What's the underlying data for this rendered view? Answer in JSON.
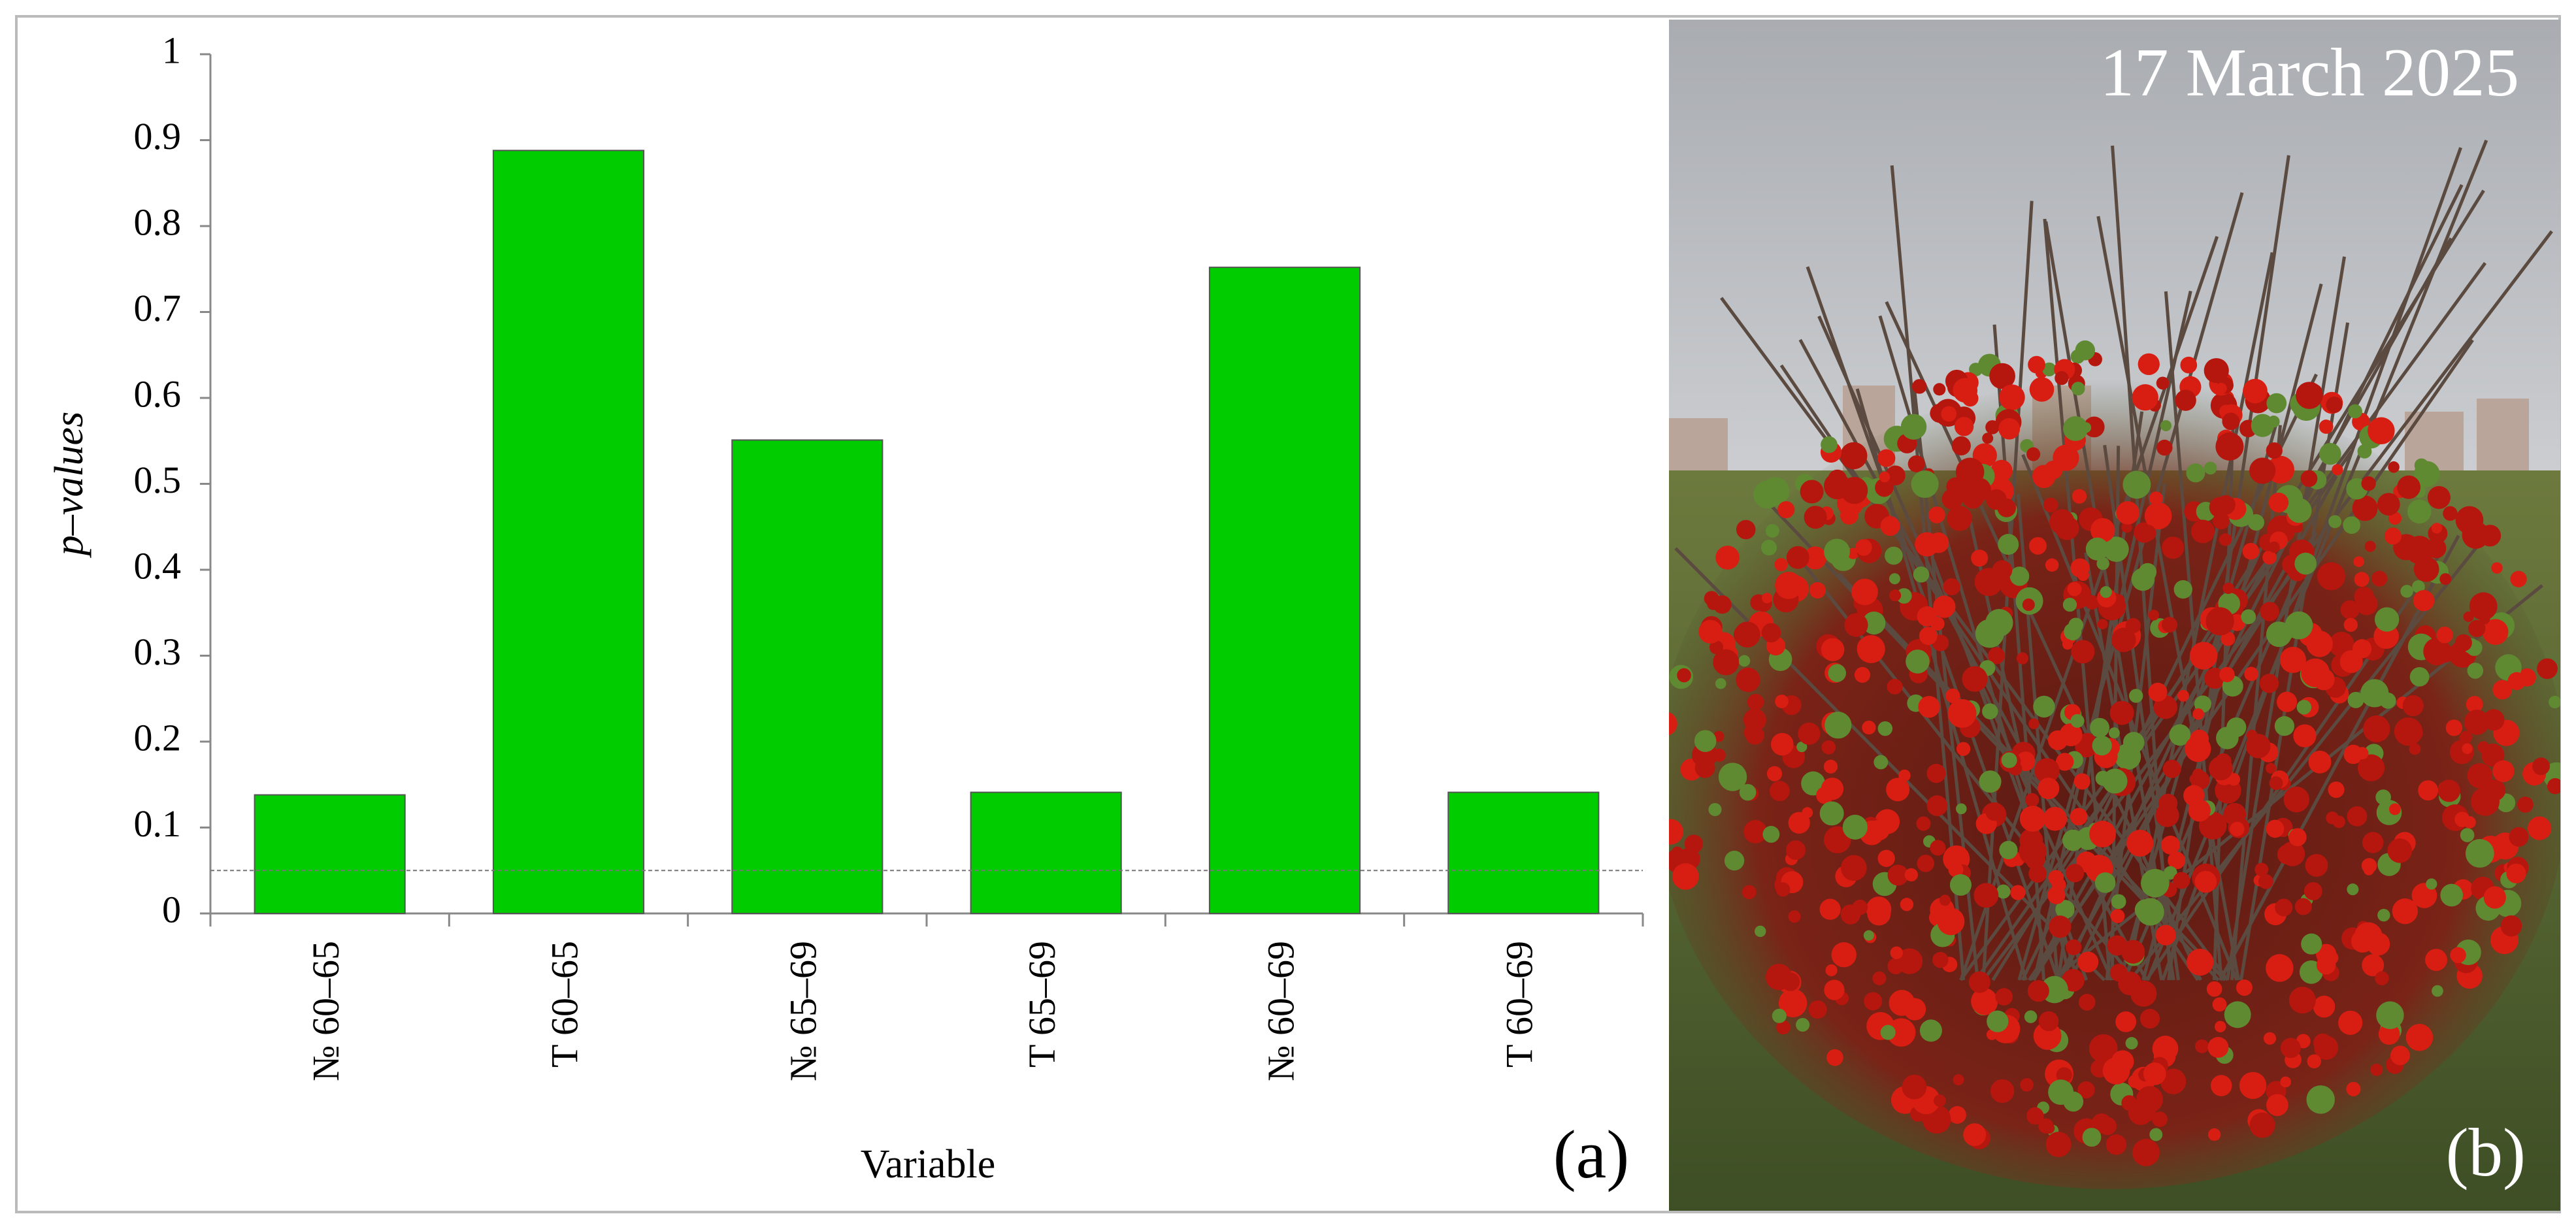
{
  "chart_data": {
    "type": "bar",
    "panel_label": "(a)",
    "y_label": "p–values",
    "x_label": "Variable",
    "categories": [
      "№ 60–65",
      "T 60–65",
      "№ 65–69",
      "T 65–69",
      "№ 60–69",
      "T 60–69"
    ],
    "values": [
      0.138,
      0.888,
      0.551,
      0.141,
      0.752,
      0.141
    ],
    "color": "#00cc00",
    "reference_line": 0.05,
    "ylim": [
      0,
      1
    ],
    "yticks": [
      0,
      0.1,
      0.2,
      0.3,
      0.4,
      0.5,
      0.6,
      0.7,
      0.8,
      0.9,
      1
    ],
    "grid": false
  },
  "photo": {
    "caption": "17 March 2025",
    "panel_label": "(b)"
  }
}
